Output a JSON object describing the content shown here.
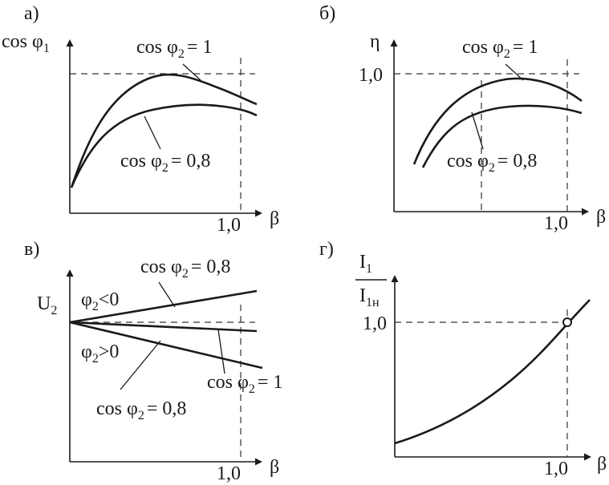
{
  "chart_data": [
    {
      "panel": "а)",
      "type": "line",
      "ylabel_base": "cos φ",
      "ylabel_sub": "1",
      "xlabel": "β",
      "x_tick": "1,0",
      "series": [
        {
          "name_base": "cos φ",
          "name_sub": "2",
          "name_tail": "= 1",
          "x": [
            0,
            0.2,
            0.4,
            0.6,
            0.8,
            1.0,
            1.1
          ],
          "y": [
            0.15,
            0.72,
            0.95,
            1.0,
            0.96,
            0.87,
            0.82
          ]
        },
        {
          "name_base": "cos φ",
          "name_sub": "2",
          "name_tail": "= 0,8",
          "x": [
            0,
            0.2,
            0.4,
            0.6,
            0.8,
            1.0,
            1.1
          ],
          "y": [
            0.15,
            0.52,
            0.7,
            0.78,
            0.8,
            0.78,
            0.75
          ]
        }
      ]
    },
    {
      "panel": "б)",
      "type": "line",
      "ylabel_base": "η",
      "xlabel": "β",
      "y_tick": "1,0",
      "x_tick": "1,0",
      "series": [
        {
          "name_base": "cos φ",
          "name_sub": "2",
          "name_tail": "= 1",
          "x": [
            0.1,
            0.3,
            0.5,
            0.7,
            0.9,
            1.1
          ],
          "y": [
            0.33,
            0.75,
            0.9,
            0.93,
            0.89,
            0.8
          ]
        },
        {
          "name_base": "cos φ",
          "name_sub": "2",
          "name_tail": "= 0,8",
          "x": [
            0.15,
            0.35,
            0.55,
            0.75,
            0.95,
            1.1
          ],
          "y": [
            0.33,
            0.6,
            0.72,
            0.75,
            0.74,
            0.71
          ]
        }
      ]
    },
    {
      "panel": "в)",
      "type": "line",
      "ylabel_base": "U",
      "ylabel_sub": "2",
      "xlabel": "β",
      "x_tick": "1,0",
      "region_labels": [
        {
          "base": "φ",
          "sub": "2",
          "tail": "<0"
        },
        {
          "base": "φ",
          "sub": "2",
          "tail": ">0"
        }
      ],
      "series": [
        {
          "name_base": "cos φ",
          "name_sub": "2",
          "name_tail": "= 0,8",
          "condition": "φ2<0",
          "x": [
            0,
            1.1
          ],
          "y": [
            1.0,
            1.17
          ]
        },
        {
          "name_base": "cos φ",
          "name_sub": "2",
          "name_tail": "= 1",
          "x": [
            0,
            1.1
          ],
          "y": [
            1.0,
            0.95
          ]
        },
        {
          "name_base": "cos φ",
          "name_sub": "2",
          "name_tail": "= 0,8",
          "condition": "φ2>0",
          "x": [
            0,
            1.1
          ],
          "y": [
            1.0,
            0.84
          ]
        }
      ]
    },
    {
      "panel": "г)",
      "type": "line",
      "ylabel_num_base": "I",
      "ylabel_num_sub": "1",
      "ylabel_den_base": "I",
      "ylabel_den_sub": "1н",
      "xlabel": "β",
      "y_tick": "1,0",
      "x_tick": "1,0",
      "marked_point": {
        "x": 1.0,
        "y": 1.0
      },
      "series": [
        {
          "x": [
            0,
            0.2,
            0.4,
            0.6,
            0.8,
            1.0,
            1.12
          ],
          "y": [
            0.13,
            0.2,
            0.32,
            0.48,
            0.72,
            1.0,
            1.17
          ]
        }
      ]
    }
  ]
}
